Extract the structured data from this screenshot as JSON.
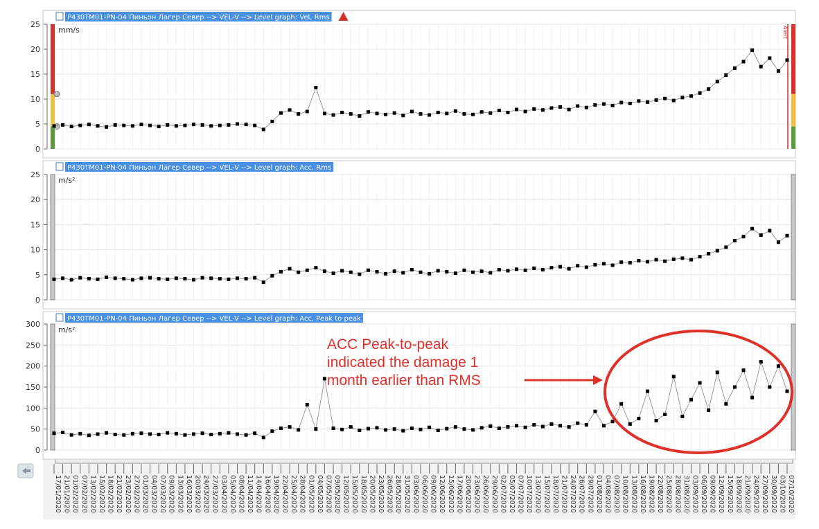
{
  "x_categories": [
    "17/01/2020",
    "21/01/2020",
    "01/02/2020",
    "07/02/2020",
    "13/02/2020",
    "15/02/2020",
    "18/02/2020",
    "21/02/2020",
    "23/02/2020",
    "27/02/2020",
    "01/03/2020",
    "04/03/2020",
    "07/03/2020",
    "09/03/2020",
    "13/03/2020",
    "16/03/2020",
    "20/03/2020",
    "24/03/2020",
    "27/03/2020",
    "03/04/2020",
    "05/04/2020",
    "08/04/2020",
    "11/04/2020",
    "14/04/2020",
    "16/04/2020",
    "19/04/2020",
    "22/04/2020",
    "25/04/2020",
    "28/04/2020",
    "01/05/2020",
    "04/05/2020",
    "07/05/2020",
    "09/05/2020",
    "12/05/2020",
    "15/05/2020",
    "18/05/2020",
    "20/05/2020",
    "23/05/2020",
    "26/05/2020",
    "28/05/2020",
    "31/05/2020",
    "03/06/2020",
    "06/06/2020",
    "09/06/2020",
    "12/06/2020",
    "15/06/2020",
    "17/06/2020",
    "20/06/2020",
    "23/06/2020",
    "26/06/2020",
    "29/06/2020",
    "02/07/2020",
    "05/07/2020",
    "07/07/2020",
    "10/07/2020",
    "13/07/2020",
    "15/07/2020",
    "18/07/2020",
    "21/07/2020",
    "24/07/2020",
    "26/07/2020",
    "29/07/2020",
    "01/08/2020",
    "04/08/2020",
    "07/08/2020",
    "10/08/2020",
    "13/08/2020",
    "16/08/2020",
    "19/08/2020",
    "22/08/2020",
    "25/08/2020",
    "28/08/2020",
    "31/08/2020",
    "03/09/2020",
    "06/09/2020",
    "09/09/2020",
    "12/09/2020",
    "15/09/2020",
    "18/09/2020",
    "21/09/2020",
    "24/09/2020",
    "27/09/2020",
    "30/09/2020",
    "03/10/2020",
    "07/10/2020"
  ],
  "chart_data": [
    {
      "type": "scatter",
      "title": "P430TM01-PN-04 Пиньон Лагер Север --> VEL-V --> Level graph: Vel, Rms",
      "unit": "mm/s",
      "alert_label": "Alert",
      "color": "#000000",
      "ylim": [
        0,
        25
      ],
      "yticks": [
        0,
        5,
        10,
        15,
        20,
        25
      ],
      "grid": true,
      "zones": [
        {
          "from": 0,
          "to": 4.5,
          "color": "#5b9a3c"
        },
        {
          "from": 4.5,
          "to": 11,
          "color": "#f0c040"
        },
        {
          "from": 11,
          "to": 25,
          "color": "#d6302a"
        }
      ],
      "values": [
        4.6,
        4.8,
        4.5,
        4.7,
        4.9,
        4.6,
        4.4,
        4.8,
        4.7,
        4.6,
        4.9,
        4.7,
        4.5,
        4.8,
        4.6,
        4.7,
        4.9,
        4.8,
        4.6,
        4.7,
        4.8,
        5.0,
        4.9,
        4.7,
        3.9,
        5.5,
        7.2,
        7.8,
        7.0,
        7.5,
        12.3,
        7.1,
        6.8,
        7.3,
        7.0,
        6.6,
        7.4,
        7.1,
        6.9,
        7.2,
        6.7,
        7.5,
        7.0,
        6.8,
        7.3,
        7.1,
        7.6,
        7.0,
        6.9,
        7.4,
        7.2,
        7.7,
        7.3,
        7.9,
        7.5,
        8.0,
        7.8,
        8.2,
        8.4,
        7.9,
        8.6,
        8.3,
        8.8,
        9.0,
        8.7,
        9.3,
        9.1,
        9.6,
        9.4,
        9.8,
        10.1,
        9.7,
        10.3,
        10.6,
        11.2,
        12.0,
        13.5,
        14.8,
        16.2,
        17.5,
        19.8,
        16.5,
        18.2,
        15.6,
        17.8
      ]
    },
    {
      "type": "scatter",
      "title": "P430TM01-PN-04 Пиньон Лагер Север --> VEL-V --> Level graph: Acc, Rms",
      "unit": "m/s²",
      "color": "#000000",
      "ylim": [
        0,
        25
      ],
      "yticks": [
        0,
        5,
        10,
        15,
        20,
        25
      ],
      "grid": true,
      "values": [
        4.1,
        4.3,
        4.0,
        4.4,
        4.2,
        4.1,
        4.5,
        4.3,
        4.2,
        4.0,
        4.3,
        4.4,
        4.2,
        4.1,
        4.3,
        4.2,
        4.0,
        4.4,
        4.3,
        4.2,
        4.1,
        4.3,
        4.2,
        4.4,
        3.5,
        4.8,
        5.6,
        6.2,
        5.5,
        5.9,
        6.4,
        5.7,
        5.3,
        5.8,
        5.5,
        5.1,
        5.9,
        5.6,
        5.2,
        5.7,
        5.4,
        6.0,
        5.5,
        5.2,
        5.8,
        5.6,
        5.3,
        5.9,
        5.5,
        5.7,
        5.4,
        6.0,
        5.8,
        6.1,
        5.9,
        6.3,
        6.0,
        6.4,
        6.6,
        6.2,
        6.8,
        6.5,
        7.0,
        7.2,
        6.9,
        7.5,
        7.4,
        7.8,
        7.6,
        8.0,
        7.7,
        8.1,
        8.3,
        8.0,
        8.6,
        9.2,
        9.8,
        10.5,
        11.8,
        12.6,
        14.2,
        12.9,
        13.8,
        11.5,
        12.8
      ]
    },
    {
      "type": "scatter",
      "title": "P430TM01-PN-04 Пиньон Лагер Север --> VEL-V --> Level graph: Acc, Peak to peak",
      "unit": "m/s²",
      "color": "#000000",
      "ylim": [
        0,
        300
      ],
      "yticks": [
        0,
        50,
        100,
        150,
        200,
        250,
        300
      ],
      "grid": true,
      "annotation": [
        "ACC Peak-to-peak",
        "indicated the damage 1",
        "month earlier than RMS"
      ],
      "values": [
        40,
        42,
        36,
        39,
        35,
        38,
        41,
        37,
        36,
        39,
        40,
        38,
        37,
        41,
        39,
        36,
        38,
        40,
        37,
        39,
        41,
        38,
        36,
        40,
        30,
        45,
        52,
        55,
        48,
        108,
        50,
        170,
        52,
        49,
        55,
        47,
        51,
        53,
        48,
        50,
        46,
        52,
        49,
        54,
        47,
        51,
        55,
        50,
        48,
        53,
        57,
        52,
        55,
        58,
        54,
        60,
        56,
        62,
        58,
        55,
        64,
        60,
        92,
        58,
        68,
        110,
        62,
        75,
        140,
        70,
        85,
        175,
        80,
        120,
        160,
        95,
        185,
        110,
        150,
        190,
        125,
        210,
        150,
        200,
        140
      ]
    }
  ]
}
